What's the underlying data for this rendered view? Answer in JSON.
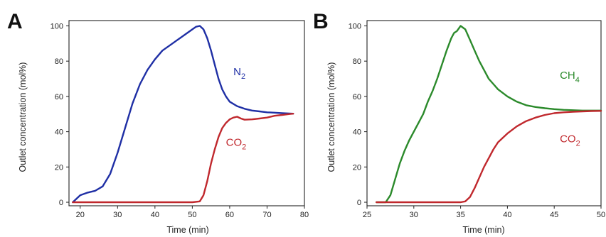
{
  "colors": {
    "blue": "#1f2fa5",
    "red": "#c0282d",
    "green": "#2b8a2b",
    "axis": "#222222"
  },
  "chart_data": [
    {
      "type": "line",
      "panel_label": "A",
      "xlabel": "Time (min)",
      "ylabel": "Outlet concentration (mol%)",
      "xlim": [
        17,
        80
      ],
      "ylim": [
        -2,
        103
      ],
      "xticks": [
        "20",
        "30",
        "40",
        "50",
        "60",
        "70",
        "80"
      ],
      "yticks": [
        "0",
        "20",
        "40",
        "60",
        "80",
        "100"
      ],
      "grid": false,
      "series": [
        {
          "name": "N",
          "subscript": "2",
          "color": "#1f2fa5",
          "label_pos": [
            61,
            72
          ],
          "points": [
            [
              18,
              0
            ],
            [
              19,
              2
            ],
            [
              20,
              4
            ],
            [
              22,
              5.5
            ],
            [
              24,
              6.5
            ],
            [
              26,
              9
            ],
            [
              28,
              16
            ],
            [
              30,
              28
            ],
            [
              32,
              42
            ],
            [
              34,
              56
            ],
            [
              36,
              67
            ],
            [
              38,
              75
            ],
            [
              40,
              81
            ],
            [
              42,
              86
            ],
            [
              44,
              89
            ],
            [
              46,
              92
            ],
            [
              48,
              95
            ],
            [
              50,
              98
            ],
            [
              51,
              99.5
            ],
            [
              52,
              100
            ],
            [
              53,
              98
            ],
            [
              54,
              93
            ],
            [
              55,
              86
            ],
            [
              56,
              78
            ],
            [
              57,
              70
            ],
            [
              58,
              64
            ],
            [
              59,
              60
            ],
            [
              60,
              57
            ],
            [
              62,
              54.5
            ],
            [
              64,
              53
            ],
            [
              66,
              52
            ],
            [
              68,
              51.5
            ],
            [
              70,
              51
            ],
            [
              72,
              50.8
            ],
            [
              74,
              50.5
            ],
            [
              76,
              50.3
            ],
            [
              77,
              50.2
            ]
          ]
        },
        {
          "name": "CO",
          "subscript": "2",
          "color": "#c0282d",
          "label_pos": [
            59,
            32
          ],
          "points": [
            [
              18,
              0
            ],
            [
              22,
              0
            ],
            [
              30,
              0
            ],
            [
              40,
              0
            ],
            [
              50,
              0
            ],
            [
              52,
              0.5
            ],
            [
              53,
              4
            ],
            [
              54,
              12
            ],
            [
              55,
              22
            ],
            [
              56,
              30
            ],
            [
              57,
              37
            ],
            [
              58,
              42
            ],
            [
              59,
              45
            ],
            [
              60,
              47
            ],
            [
              61,
              48
            ],
            [
              62,
              48.5
            ],
            [
              63,
              47.5
            ],
            [
              64,
              46.8
            ],
            [
              66,
              47
            ],
            [
              68,
              47.5
            ],
            [
              70,
              48
            ],
            [
              72,
              49
            ],
            [
              74,
              49.5
            ],
            [
              76,
              50
            ],
            [
              77,
              50.2
            ]
          ]
        }
      ]
    },
    {
      "type": "line",
      "panel_label": "B",
      "xlabel": "Time (min)",
      "ylabel": "Outlet concentration (mol%)",
      "xlim": [
        25,
        50
      ],
      "ylim": [
        -2,
        103
      ],
      "xticks": [
        "25",
        "30",
        "35",
        "40",
        "45",
        "50"
      ],
      "yticks": [
        "0",
        "20",
        "40",
        "60",
        "80",
        "100"
      ],
      "grid": false,
      "series": [
        {
          "name": "CH",
          "subscript": "4",
          "color": "#2b8a2b",
          "label_pos": [
            45.6,
            70
          ],
          "points": [
            [
              26,
              0
            ],
            [
              26.5,
              0
            ],
            [
              27,
              0
            ],
            [
              27.5,
              4
            ],
            [
              28,
              13
            ],
            [
              28.5,
              22
            ],
            [
              29,
              29
            ],
            [
              29.5,
              35
            ],
            [
              30,
              40
            ],
            [
              30.5,
              45
            ],
            [
              31,
              50
            ],
            [
              31.5,
              57
            ],
            [
              32,
              63
            ],
            [
              32.5,
              70
            ],
            [
              33,
              78
            ],
            [
              33.5,
              86
            ],
            [
              34,
              93
            ],
            [
              34.3,
              96
            ],
            [
              34.6,
              97
            ],
            [
              35,
              100
            ],
            [
              35.5,
              98
            ],
            [
              36,
              92
            ],
            [
              36.5,
              86
            ],
            [
              37,
              80
            ],
            [
              37.5,
              75
            ],
            [
              38,
              70
            ],
            [
              38.5,
              67
            ],
            [
              39,
              64
            ],
            [
              40,
              60
            ],
            [
              41,
              57
            ],
            [
              42,
              55
            ],
            [
              43,
              54
            ],
            [
              44,
              53.3
            ],
            [
              45,
              52.8
            ],
            [
              46,
              52.4
            ],
            [
              47,
              52.2
            ],
            [
              48,
              52
            ],
            [
              49,
              52
            ],
            [
              50,
              52
            ]
          ]
        },
        {
          "name": "CO",
          "subscript": "2",
          "color": "#c0282d",
          "label_pos": [
            45.6,
            34
          ],
          "points": [
            [
              26,
              0
            ],
            [
              30,
              0
            ],
            [
              33,
              0
            ],
            [
              35,
              0
            ],
            [
              35.5,
              0.5
            ],
            [
              36,
              3
            ],
            [
              36.5,
              8
            ],
            [
              37,
              14
            ],
            [
              37.5,
              20
            ],
            [
              38,
              25
            ],
            [
              38.5,
              30
            ],
            [
              39,
              34
            ],
            [
              40,
              39
            ],
            [
              41,
              43
            ],
            [
              42,
              46
            ],
            [
              43,
              48
            ],
            [
              44,
              49.5
            ],
            [
              45,
              50.5
            ],
            [
              46,
              51
            ],
            [
              47,
              51.3
            ],
            [
              48,
              51.5
            ],
            [
              49,
              51.7
            ],
            [
              50,
              51.8
            ]
          ]
        }
      ]
    }
  ]
}
